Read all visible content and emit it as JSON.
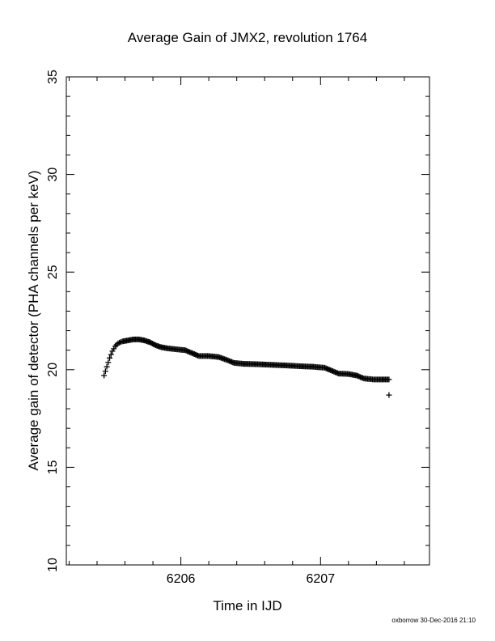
{
  "chart_data": {
    "type": "scatter",
    "title": "Average Gain of JMX2, revolution 1764",
    "xlabel": "Time in IJD",
    "ylabel": "Average gain of detector (PHA channels per keV)",
    "xlim": [
      6205.18,
      6207.78
    ],
    "ylim": [
      10,
      35
    ],
    "x_ticks": [
      6206,
      6207
    ],
    "y_ticks": [
      10,
      15,
      20,
      25,
      30,
      35
    ],
    "x_minor_step": 0.2,
    "y_minor_step": 1,
    "marker": "+",
    "color": "#000000",
    "credit": "oxborrow 30-Dec-2016 21:10",
    "series": [
      {
        "points": [
          [
            6205.45,
            19.7
          ],
          [
            6205.47,
            20.15
          ],
          [
            6205.49,
            20.6
          ],
          [
            6205.51,
            20.95
          ],
          [
            6205.53,
            21.2
          ],
          [
            6205.55,
            21.35
          ],
          [
            6205.58,
            21.45
          ],
          [
            6205.62,
            21.5
          ],
          [
            6205.66,
            21.55
          ],
          [
            6205.7,
            21.55
          ],
          [
            6205.74,
            21.5
          ],
          [
            6205.78,
            21.4
          ],
          [
            6205.82,
            21.25
          ],
          [
            6205.86,
            21.15
          ],
          [
            6205.9,
            21.1
          ],
          [
            6205.96,
            21.05
          ],
          [
            6206.03,
            21.0
          ],
          [
            6206.08,
            20.85
          ],
          [
            6206.13,
            20.7
          ],
          [
            6206.2,
            20.7
          ],
          [
            6206.27,
            20.65
          ],
          [
            6206.33,
            20.5
          ],
          [
            6206.38,
            20.35
          ],
          [
            6206.45,
            20.3
          ],
          [
            6206.55,
            20.28
          ],
          [
            6206.65,
            20.25
          ],
          [
            6206.75,
            20.22
          ],
          [
            6206.85,
            20.18
          ],
          [
            6206.95,
            20.15
          ],
          [
            6207.03,
            20.1
          ],
          [
            6207.08,
            19.95
          ],
          [
            6207.13,
            19.8
          ],
          [
            6207.2,
            19.78
          ],
          [
            6207.26,
            19.7
          ],
          [
            6207.31,
            19.55
          ],
          [
            6207.38,
            19.5
          ],
          [
            6207.44,
            19.5
          ],
          [
            6207.49,
            19.5
          ],
          [
            6207.49,
            18.7
          ]
        ]
      }
    ]
  }
}
